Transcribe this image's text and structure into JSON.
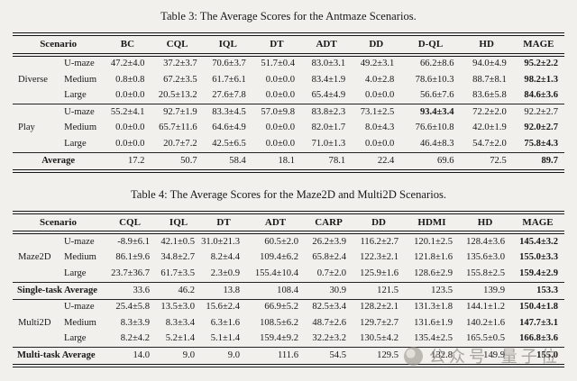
{
  "page": {
    "background": "#f2f0ed",
    "text_color": "#181818"
  },
  "watermark": {
    "text_left": "公众号",
    "separator": "·",
    "text_right": "量子位"
  },
  "tables": [
    {
      "title": "Table 3: The Average Scores for the Antmaze Scenarios.",
      "header": {
        "scenario_label": "Scenario",
        "methods": [
          "BC",
          "CQL",
          "IQL",
          "DT",
          "ADT",
          "DD",
          "D-QL",
          "HD",
          "MAGE"
        ]
      },
      "sections": [
        {
          "type": "group",
          "name": "Diverse",
          "rows": [
            {
              "label": "U-maze",
              "values": [
                "47.2±4.0",
                "37.2±3.7",
                "70.6±3.7",
                "51.7±0.4",
                "83.0±3.1",
                "49.2±3.1",
                "66.2±8.6",
                "94.0±4.9",
                "95.2±2.2"
              ],
              "bold": [
                8
              ]
            },
            {
              "label": "Medium",
              "values": [
                "0.8±0.8",
                "67.2±3.5",
                "61.7±6.1",
                "0.0±0.0",
                "83.4±1.9",
                "4.0±2.8",
                "78.6±10.3",
                "88.7±8.1",
                "98.2±1.3"
              ],
              "bold": [
                8
              ]
            },
            {
              "label": "Large",
              "values": [
                "0.0±0.0",
                "20.5±13.2",
                "27.6±7.8",
                "0.0±0.0",
                "65.4±4.9",
                "0.0±0.0",
                "56.6±7.6",
                "83.6±5.8",
                "84.6±3.6"
              ],
              "bold": [
                8
              ]
            }
          ]
        },
        {
          "type": "group",
          "name": "Play",
          "rows": [
            {
              "label": "U-maze",
              "values": [
                "55.2±4.1",
                "92.7±1.9",
                "83.3±4.5",
                "57.0±9.8",
                "83.8±2.3",
                "73.1±2.5",
                "93.4±3.4",
                "72.2±2.0",
                "92.2±2.7"
              ],
              "bold": [
                6
              ]
            },
            {
              "label": "Medium",
              "values": [
                "0.0±0.0",
                "65.7±11.6",
                "64.6±4.9",
                "0.0±0.0",
                "82.0±1.7",
                "8.0±4.3",
                "76.6±10.8",
                "42.0±1.9",
                "92.0±2.7"
              ],
              "bold": [
                8
              ]
            },
            {
              "label": "Large",
              "values": [
                "0.0±0.0",
                "20.7±7.2",
                "42.5±6.5",
                "0.0±0.0",
                "71.0±1.3",
                "0.0±0.0",
                "46.4±8.3",
                "54.7±2.0",
                "75.8±4.3"
              ],
              "bold": [
                8
              ]
            }
          ]
        },
        {
          "type": "summary",
          "label": "Average",
          "align": "center",
          "values": [
            "17.2",
            "50.7",
            "58.4",
            "18.1",
            "78.1",
            "22.4",
            "69.6",
            "72.5",
            "89.7"
          ],
          "bold": [
            8
          ]
        }
      ]
    },
    {
      "title": "Table 4: The Average Scores for the Maze2D and Multi2D Scenarios.",
      "header": {
        "scenario_label": "Scenario",
        "methods": [
          "CQL",
          "IQL",
          "DT",
          "ADT",
          "CARP",
          "DD",
          "HDMI",
          "HD",
          "MAGE"
        ]
      },
      "sections": [
        {
          "type": "group",
          "name": "Maze2D",
          "rows": [
            {
              "label": "U-maze",
              "values": [
                "-8.9±6.1",
                "42.1±0.5",
                "31.0±21.3",
                "60.5±2.0",
                "26.2±3.9",
                "116.2±2.7",
                "120.1±2.5",
                "128.4±3.6",
                "145.4±3.2"
              ],
              "bold": [
                8
              ]
            },
            {
              "label": "Medium",
              "values": [
                "86.1±9.6",
                "34.8±2.7",
                "8.2±4.4",
                "109.4±6.2",
                "65.8±2.4",
                "122.3±2.1",
                "121.8±1.6",
                "135.6±3.0",
                "155.0±3.3"
              ],
              "bold": [
                8
              ]
            },
            {
              "label": "Large",
              "values": [
                "23.7±36.7",
                "61.7±3.5",
                "2.3±0.9",
                "155.4±10.4",
                "0.7±2.0",
                "125.9±1.6",
                "128.6±2.9",
                "155.8±2.5",
                "159.4±2.9"
              ],
              "bold": [
                8
              ]
            }
          ]
        },
        {
          "type": "summary",
          "label": "Single-task Average",
          "align": "left",
          "values": [
            "33.6",
            "46.2",
            "13.8",
            "108.4",
            "30.9",
            "121.5",
            "123.5",
            "139.9",
            "153.3"
          ],
          "bold": [
            8
          ]
        },
        {
          "type": "group",
          "name": "Multi2D",
          "rows": [
            {
              "label": "U-maze",
              "values": [
                "25.4±5.8",
                "13.5±3.0",
                "15.6±2.4",
                "66.9±5.2",
                "82.5±3.4",
                "128.2±2.1",
                "131.3±1.8",
                "144.1±1.2",
                "150.4±1.8"
              ],
              "bold": [
                8
              ]
            },
            {
              "label": "Medium",
              "values": [
                "8.3±3.9",
                "8.3±3.4",
                "6.3±1.6",
                "108.5±6.2",
                "48.7±2.6",
                "129.7±2.7",
                "131.6±1.9",
                "140.2±1.6",
                "147.7±3.1"
              ],
              "bold": [
                8
              ]
            },
            {
              "label": "Large",
              "values": [
                "8.2±4.2",
                "5.2±1.4",
                "5.1±1.4",
                "159.4±9.2",
                "32.2±3.2",
                "130.5±4.2",
                "135.4±2.5",
                "165.5±0.5",
                "166.8±3.6"
              ],
              "bold": [
                8
              ]
            }
          ]
        },
        {
          "type": "summary",
          "label": "Multi-task Average",
          "align": "left",
          "values": [
            "14.0",
            "9.0",
            "9.0",
            "111.6",
            "54.5",
            "129.5",
            "132.8",
            "149.9",
            "155.0"
          ],
          "bold": [
            8
          ]
        }
      ]
    }
  ]
}
